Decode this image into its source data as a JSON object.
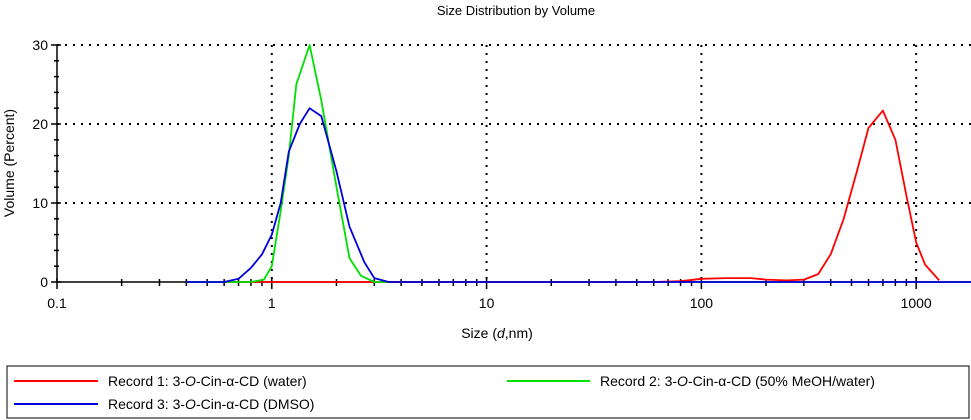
{
  "chart_data": {
    "type": "line",
    "title": "Size Distribution by Volume",
    "xlabel": {
      "prefix": "Size (",
      "italic": "d",
      "suffix": ",nm)"
    },
    "ylabel": "Volume (Percent)",
    "x_scale": "log",
    "xlim": [
      0.1,
      1800
    ],
    "ylim": [
      0,
      30
    ],
    "x_ticks": [
      {
        "value": 0.1,
        "label": "0.1"
      },
      {
        "value": 1,
        "label": "1"
      },
      {
        "value": 10,
        "label": "10"
      },
      {
        "value": 100,
        "label": "100"
      },
      {
        "value": 1000,
        "label": "1000"
      }
    ],
    "y_ticks": [
      {
        "value": 0,
        "label": "0"
      },
      {
        "value": 10,
        "label": "10"
      },
      {
        "value": 20,
        "label": "20"
      },
      {
        "value": 30,
        "label": "30"
      }
    ],
    "grid": true,
    "legend_position": "bottom",
    "series": [
      {
        "legend": {
          "prefix": "Record 1: 3-",
          "italic": "O",
          "suffix": "-Cin-α-CD (water)"
        },
        "color": "#ff0000",
        "points": [
          [
            0.4,
            0
          ],
          [
            1,
            0
          ],
          [
            10,
            0
          ],
          [
            60,
            0
          ],
          [
            80,
            0.1
          ],
          [
            100,
            0.4
          ],
          [
            130,
            0.5
          ],
          [
            170,
            0.5
          ],
          [
            200,
            0.3
          ],
          [
            250,
            0.2
          ],
          [
            300,
            0.3
          ],
          [
            350,
            1
          ],
          [
            400,
            3.5
          ],
          [
            460,
            8
          ],
          [
            530,
            14
          ],
          [
            600,
            19.5
          ],
          [
            700,
            21.7
          ],
          [
            800,
            18
          ],
          [
            900,
            11
          ],
          [
            1000,
            5
          ],
          [
            1100,
            2.2
          ],
          [
            1280,
            0.2
          ]
        ]
      },
      {
        "legend": {
          "prefix": "Record 2: 3-",
          "italic": "O",
          "suffix": "-Cin-α-CD (50% MeOH/water)"
        },
        "color": "#00e000",
        "points": [
          [
            0.4,
            0
          ],
          [
            0.8,
            0
          ],
          [
            0.92,
            0.3
          ],
          [
            1,
            2
          ],
          [
            1.1,
            9
          ],
          [
            1.2,
            16
          ],
          [
            1.3,
            25
          ],
          [
            1.5,
            30
          ],
          [
            1.7,
            23
          ],
          [
            2,
            12
          ],
          [
            2.3,
            3
          ],
          [
            2.6,
            0.8
          ],
          [
            3,
            0
          ],
          [
            3.5,
            0
          ]
        ]
      },
      {
        "legend": {
          "prefix": "Record 3: 3-",
          "italic": "O",
          "suffix": "-Cin-α-CD (DMSO)"
        },
        "color": "#0000dd",
        "points": [
          [
            0.4,
            0
          ],
          [
            0.6,
            0
          ],
          [
            0.7,
            0.4
          ],
          [
            0.8,
            1.8
          ],
          [
            0.9,
            3.5
          ],
          [
            1,
            6
          ],
          [
            1.1,
            10
          ],
          [
            1.2,
            16.5
          ],
          [
            1.35,
            20
          ],
          [
            1.5,
            22
          ],
          [
            1.7,
            21
          ],
          [
            2,
            14
          ],
          [
            2.3,
            7
          ],
          [
            2.7,
            2.5
          ],
          [
            3,
            0.5
          ],
          [
            3.5,
            0
          ],
          [
            10,
            0
          ],
          [
            100,
            0
          ],
          [
            1000,
            0
          ],
          [
            1800,
            0
          ]
        ]
      }
    ]
  }
}
